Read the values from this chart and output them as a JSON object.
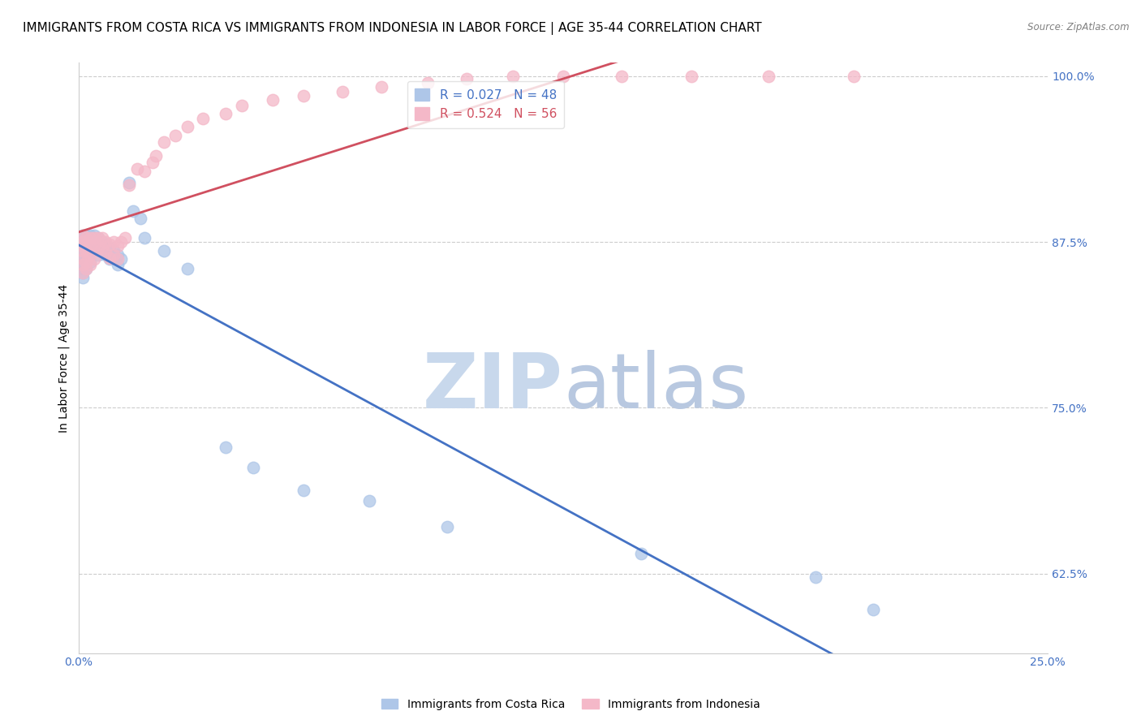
{
  "title": "IMMIGRANTS FROM COSTA RICA VS IMMIGRANTS FROM INDONESIA IN LABOR FORCE | AGE 35-44 CORRELATION CHART",
  "source": "Source: ZipAtlas.com",
  "ylabel_label": "In Labor Force | Age 35-44",
  "xlim": [
    0.0,
    0.25
  ],
  "ylim": [
    0.565,
    1.01
  ],
  "yticks": [
    0.625,
    0.75,
    0.875,
    1.0
  ],
  "yticklabels": [
    "62.5%",
    "75.0%",
    "87.5%",
    "100.0%"
  ],
  "costa_rica_color": "#aec6e8",
  "indonesia_color": "#f4b8c8",
  "costa_rica_line_color": "#4472c4",
  "indonesia_line_color": "#d05060",
  "legend_R_costa_rica": "R = 0.027",
  "legend_N_costa_rica": "N = 48",
  "legend_R_indonesia": "R = 0.524",
  "legend_N_indonesia": "N = 56",
  "costa_rica_x": [
    0.001,
    0.001,
    0.001,
    0.001,
    0.001,
    0.001,
    0.001,
    0.001,
    0.002,
    0.002,
    0.002,
    0.002,
    0.002,
    0.003,
    0.003,
    0.003,
    0.003,
    0.003,
    0.004,
    0.004,
    0.004,
    0.005,
    0.005,
    0.005,
    0.006,
    0.006,
    0.007,
    0.007,
    0.008,
    0.008,
    0.009,
    0.01,
    0.01,
    0.011,
    0.013,
    0.014,
    0.016,
    0.017,
    0.022,
    0.028,
    0.038,
    0.045,
    0.058,
    0.075,
    0.095,
    0.145,
    0.19,
    0.205
  ],
  "costa_rica_y": [
    0.88,
    0.875,
    0.87,
    0.865,
    0.86,
    0.855,
    0.852,
    0.848,
    0.88,
    0.875,
    0.87,
    0.865,
    0.855,
    0.88,
    0.878,
    0.873,
    0.868,
    0.86,
    0.88,
    0.875,
    0.87,
    0.878,
    0.872,
    0.865,
    0.875,
    0.868,
    0.873,
    0.865,
    0.87,
    0.862,
    0.868,
    0.865,
    0.858,
    0.862,
    0.92,
    0.898,
    0.893,
    0.878,
    0.868,
    0.855,
    0.72,
    0.705,
    0.688,
    0.68,
    0.66,
    0.64,
    0.622,
    0.598
  ],
  "indonesia_x": [
    0.001,
    0.001,
    0.001,
    0.001,
    0.001,
    0.001,
    0.001,
    0.002,
    0.002,
    0.002,
    0.002,
    0.002,
    0.003,
    0.003,
    0.003,
    0.003,
    0.004,
    0.004,
    0.004,
    0.005,
    0.005,
    0.006,
    0.006,
    0.007,
    0.007,
    0.008,
    0.008,
    0.009,
    0.009,
    0.01,
    0.01,
    0.011,
    0.012,
    0.013,
    0.015,
    0.017,
    0.019,
    0.02,
    0.022,
    0.025,
    0.028,
    0.032,
    0.038,
    0.042,
    0.05,
    0.058,
    0.068,
    0.078,
    0.09,
    0.1,
    0.112,
    0.125,
    0.14,
    0.158,
    0.178,
    0.2
  ],
  "indonesia_y": [
    0.88,
    0.875,
    0.872,
    0.868,
    0.862,
    0.858,
    0.852,
    0.878,
    0.873,
    0.868,
    0.86,
    0.855,
    0.878,
    0.872,
    0.865,
    0.858,
    0.878,
    0.872,
    0.862,
    0.878,
    0.87,
    0.878,
    0.87,
    0.875,
    0.867,
    0.873,
    0.863,
    0.875,
    0.865,
    0.872,
    0.862,
    0.875,
    0.878,
    0.918,
    0.93,
    0.928,
    0.935,
    0.94,
    0.95,
    0.955,
    0.962,
    0.968,
    0.972,
    0.978,
    0.982,
    0.985,
    0.988,
    0.992,
    0.995,
    0.998,
    1.0,
    1.0,
    1.0,
    1.0,
    1.0,
    1.0
  ],
  "watermark_zip": "ZIP",
  "watermark_atlas": "atlas",
  "watermark_color_zip": "#c8d8ec",
  "watermark_color_atlas": "#b8c8e0",
  "background_color": "#ffffff",
  "grid_color": "#cccccc",
  "axis_color": "#4472c4",
  "title_fontsize": 11,
  "label_fontsize": 10,
  "tick_fontsize": 10,
  "legend_fontsize": 11
}
